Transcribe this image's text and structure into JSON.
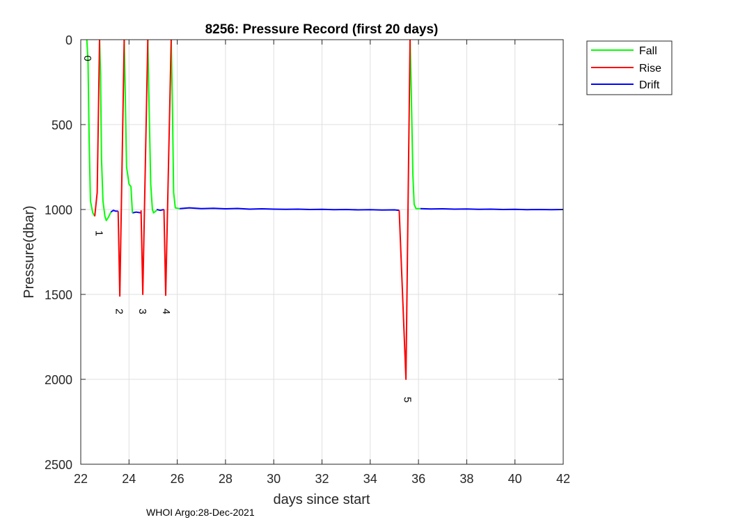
{
  "footer": "WHOI Argo:28-Dec-2021",
  "chart_data": {
    "type": "line",
    "title": "8256: Pressure Record (first 20 days)",
    "xlabel": "days since start",
    "ylabel": "Pressure(dbar)",
    "xlim": [
      22,
      42
    ],
    "ylim": [
      0,
      2500
    ],
    "y_reversed": true,
    "grid": true,
    "xticks": [
      22,
      24,
      26,
      28,
      30,
      32,
      34,
      36,
      38,
      40,
      42
    ],
    "yticks": [
      0,
      500,
      1000,
      1500,
      2000,
      2500
    ],
    "legend": {
      "placement": "outside-top-right",
      "entries": [
        "Fall",
        "Rise",
        "Drift"
      ]
    },
    "series": [
      {
        "name": "Fall",
        "color": "#00ff00",
        "segments": [
          [
            [
              22.25,
              0
            ],
            [
              22.3,
              120
            ],
            [
              22.35,
              600
            ],
            [
              22.4,
              950
            ],
            [
              22.5,
              1020
            ],
            [
              22.58,
              1040
            ]
          ],
          [
            [
              22.78,
              0
            ],
            [
              22.82,
              200
            ],
            [
              22.86,
              700
            ],
            [
              22.92,
              950
            ],
            [
              23.0,
              1040
            ],
            [
              23.06,
              1065
            ],
            [
              23.15,
              1045
            ],
            [
              23.25,
              1015
            ]
          ],
          [
            [
              23.8,
              0
            ],
            [
              23.84,
              300
            ],
            [
              23.9,
              750
            ],
            [
              24.0,
              850
            ],
            [
              24.08,
              865
            ],
            [
              24.14,
              1020
            ]
          ],
          [
            [
              24.78,
              0
            ],
            [
              24.82,
              300
            ],
            [
              24.9,
              850
            ],
            [
              24.97,
              1000
            ],
            [
              25.02,
              1020
            ],
            [
              25.15,
              1005
            ]
          ],
          [
            [
              25.75,
              0
            ],
            [
              25.8,
              400
            ],
            [
              25.85,
              900
            ],
            [
              25.92,
              990
            ],
            [
              26.1,
              995
            ]
          ],
          [
            [
              35.65,
              0
            ],
            [
              35.7,
              300
            ],
            [
              35.77,
              800
            ],
            [
              35.82,
              970
            ],
            [
              35.9,
              995
            ],
            [
              36.08,
              995
            ]
          ]
        ]
      },
      {
        "name": "Rise",
        "color": "#ff0000",
        "segments": [
          [
            [
              22.58,
              1040
            ],
            [
              22.68,
              900
            ],
            [
              22.78,
              0
            ]
          ],
          [
            [
              23.55,
              1010
            ],
            [
              23.62,
              1510
            ],
            [
              23.8,
              0
            ]
          ],
          [
            [
              24.5,
              1005
            ],
            [
              24.57,
              1500
            ],
            [
              24.78,
              0
            ]
          ],
          [
            [
              25.45,
              1000
            ],
            [
              25.52,
              1505
            ],
            [
              25.75,
              0
            ]
          ],
          [
            [
              35.2,
              1005
            ],
            [
              35.48,
              2000
            ],
            [
              35.65,
              0
            ]
          ]
        ]
      },
      {
        "name": "Drift",
        "color": "#0000ff",
        "segments": [
          [
            [
              23.25,
              1015
            ],
            [
              23.35,
              1005
            ],
            [
              23.45,
              1010
            ],
            [
              23.55,
              1010
            ]
          ],
          [
            [
              24.14,
              1020
            ],
            [
              24.3,
              1015
            ],
            [
              24.5,
              1020
            ]
          ],
          [
            [
              25.15,
              1000
            ],
            [
              25.3,
              1005
            ],
            [
              25.45,
              1000
            ]
          ],
          [
            [
              26.1,
              995
            ],
            [
              26.5,
              990
            ],
            [
              27.0,
              995
            ],
            [
              27.5,
              993
            ],
            [
              28.0,
              996
            ],
            [
              28.5,
              994
            ],
            [
              29.0,
              998
            ],
            [
              29.5,
              996
            ],
            [
              30.0,
              998
            ],
            [
              30.5,
              999
            ],
            [
              31.0,
              998
            ],
            [
              31.5,
              1000
            ],
            [
              32.0,
              999
            ],
            [
              32.5,
              1001
            ],
            [
              33.0,
              1000
            ],
            [
              33.5,
              1002
            ],
            [
              34.0,
              1001
            ],
            [
              34.5,
              1003
            ],
            [
              35.0,
              1002
            ],
            [
              35.2,
              1005
            ]
          ],
          [
            [
              36.08,
              995
            ],
            [
              36.5,
              997
            ],
            [
              37.0,
              996
            ],
            [
              37.5,
              998
            ],
            [
              38.0,
              997
            ],
            [
              38.5,
              999
            ],
            [
              39.0,
              998
            ],
            [
              39.5,
              1000
            ],
            [
              40.0,
              999
            ],
            [
              40.5,
              1001
            ],
            [
              41.0,
              1000
            ],
            [
              41.5,
              1001
            ],
            [
              42.0,
              1000
            ]
          ]
        ]
      }
    ],
    "annotations": [
      {
        "text": "0",
        "x": 22.15,
        "y": 110
      },
      {
        "text": "1",
        "x": 22.62,
        "y": 1140
      },
      {
        "text": "2",
        "x": 23.45,
        "y": 1600
      },
      {
        "text": "3",
        "x": 24.42,
        "y": 1600
      },
      {
        "text": "4",
        "x": 25.4,
        "y": 1600
      },
      {
        "text": "5",
        "x": 35.4,
        "y": 2120
      }
    ]
  }
}
